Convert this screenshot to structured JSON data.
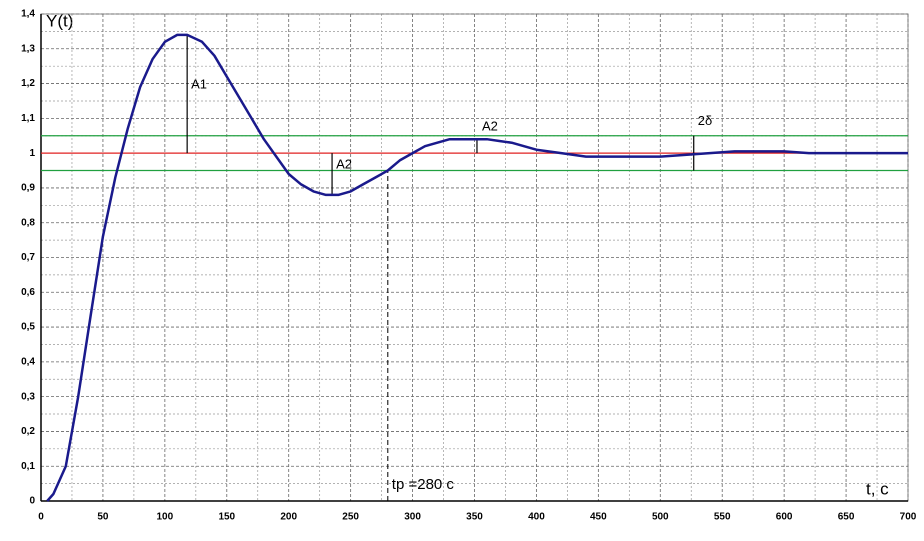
{
  "chart_data": {
    "type": "line",
    "y_label": "Y(t)",
    "x_label": "t, c",
    "xlim": [
      0,
      700
    ],
    "xticks": [
      0,
      50,
      100,
      150,
      200,
      250,
      300,
      350,
      400,
      450,
      500,
      550,
      600,
      650,
      700
    ],
    "ylim": [
      0,
      1.4
    ],
    "yticks": [
      0,
      {
        "value": 0.1,
        "label": "0,1"
      },
      {
        "value": 0.2,
        "label": "0,2"
      },
      {
        "value": 0.3,
        "label": "0,3"
      },
      {
        "value": 0.4,
        "label": "0,4"
      },
      {
        "value": 0.5,
        "label": "0,5"
      },
      {
        "value": 0.6,
        "label": "0,6"
      },
      {
        "value": 0.7,
        "label": "0,7"
      },
      {
        "value": 0.8,
        "label": "0,8"
      },
      {
        "value": 0.9,
        "label": "0,9"
      },
      1,
      {
        "value": 1.1,
        "label": "1,1"
      },
      {
        "value": 1.2,
        "label": "1,2"
      },
      {
        "value": 1.3,
        "label": "1,3"
      },
      {
        "value": 1.4,
        "label": "1,4"
      }
    ],
    "grid": true,
    "series": [
      {
        "color": "#1a1a8c",
        "x": [
          5,
          10,
          20,
          30,
          40,
          50,
          60,
          70,
          80,
          90,
          100,
          110,
          118,
          130,
          140,
          150,
          160,
          170,
          180,
          190,
          200,
          210,
          220,
          230,
          240,
          250,
          260,
          270,
          280,
          290,
          300,
          310,
          320,
          330,
          340,
          350,
          360,
          370,
          380,
          390,
          400,
          420,
          440,
          460,
          480,
          500,
          520,
          540,
          560,
          580,
          600,
          620,
          650,
          700
        ],
        "values": [
          0,
          0.02,
          0.1,
          0.3,
          0.53,
          0.76,
          0.93,
          1.07,
          1.19,
          1.27,
          1.32,
          1.34,
          1.34,
          1.32,
          1.28,
          1.22,
          1.16,
          1.1,
          1.04,
          0.99,
          0.94,
          0.91,
          0.89,
          0.88,
          0.88,
          0.89,
          0.91,
          0.93,
          0.95,
          0.98,
          1.0,
          1.02,
          1.03,
          1.04,
          1.04,
          1.04,
          1.04,
          1.035,
          1.03,
          1.02,
          1.01,
          1.0,
          0.99,
          0.99,
          0.99,
          0.99,
          0.995,
          1.0,
          1.005,
          1.005,
          1.005,
          1.0,
          1.0,
          1.0
        ]
      }
    ],
    "hlines": [
      {
        "value": 1,
        "color": "#e02020"
      },
      {
        "value": 0.95,
        "color": "#20a040"
      },
      {
        "value": 1.05,
        "color": "#20a040"
      }
    ],
    "markers": [
      {
        "label": "A1",
        "x": 118,
        "y": [
          1,
          1.34
        ]
      },
      {
        "label": "A2",
        "x": 235,
        "y": [
          0.88,
          1
        ]
      },
      {
        "label": "A2",
        "x": 352,
        "y": [
          1,
          1.04
        ]
      },
      {
        "label": "2δ",
        "x": 527,
        "y": [
          0.95,
          1.05
        ]
      },
      {
        "label": "tp =280 c",
        "x": 280,
        "y": [
          0,
          0.95
        ],
        "dashed": true
      }
    ]
  }
}
